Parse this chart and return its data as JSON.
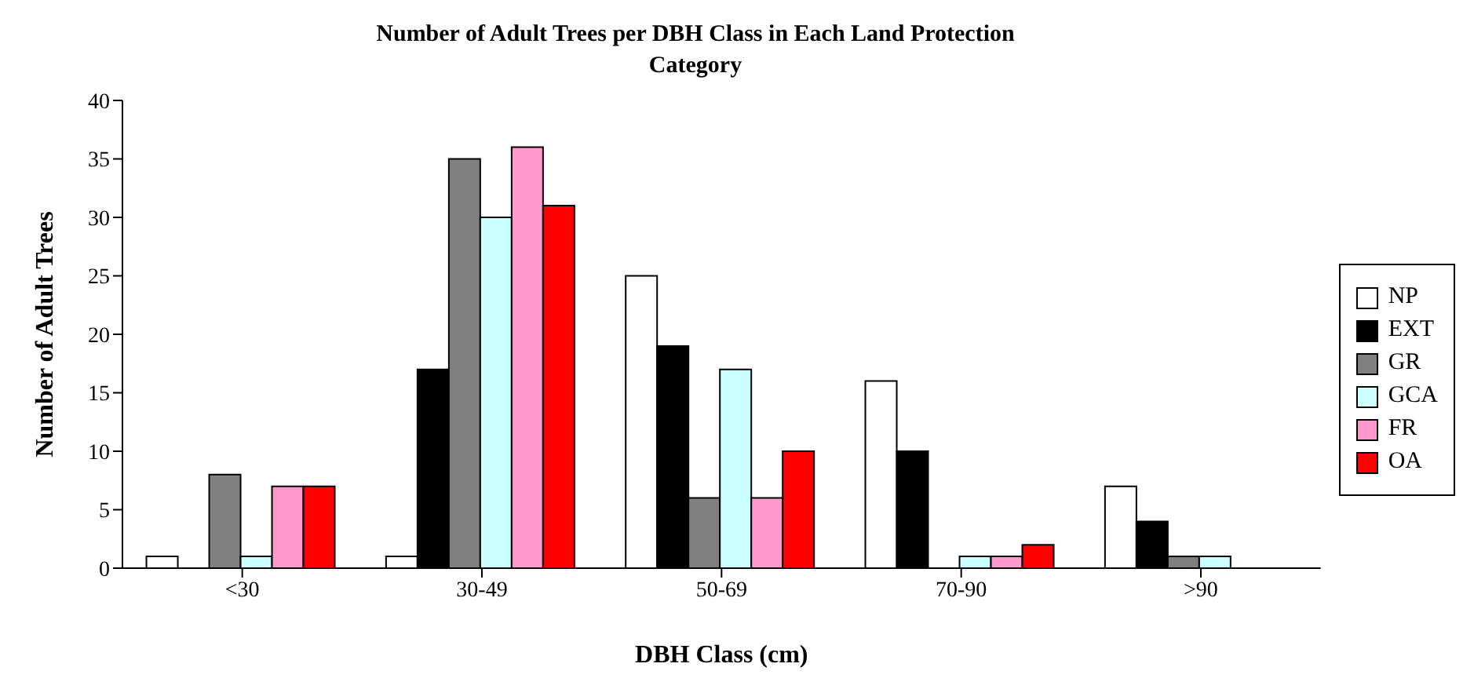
{
  "chart_data": {
    "type": "bar",
    "title": "Number of Adult Trees per DBH Class in Each Land Protection Category",
    "xlabel": "DBH Class (cm)",
    "ylabel": "Number of Adult Trees",
    "categories": [
      "<30",
      "30-49",
      "50-69",
      "70-90",
      ">90"
    ],
    "series": [
      {
        "name": "NP",
        "color": "#ffffff",
        "values": [
          1,
          1,
          25,
          16,
          7
        ]
      },
      {
        "name": "EXT",
        "color": "#000000",
        "values": [
          0,
          17,
          19,
          10,
          4
        ]
      },
      {
        "name": "GR",
        "color": "#808080",
        "values": [
          8,
          35,
          6,
          0,
          1
        ]
      },
      {
        "name": "GCA",
        "color": "#ccffff",
        "values": [
          1,
          30,
          17,
          1,
          1
        ]
      },
      {
        "name": "FR",
        "color": "#ff99cc",
        "values": [
          7,
          36,
          6,
          1,
          0
        ]
      },
      {
        "name": "OA",
        "color": "#ff0000",
        "values": [
          7,
          31,
          10,
          2,
          0
        ]
      }
    ],
    "ylim": [
      0,
      40
    ],
    "yticks": [
      0,
      5,
      10,
      15,
      20,
      25,
      30,
      35,
      40
    ],
    "grid": false,
    "legend": "right"
  }
}
